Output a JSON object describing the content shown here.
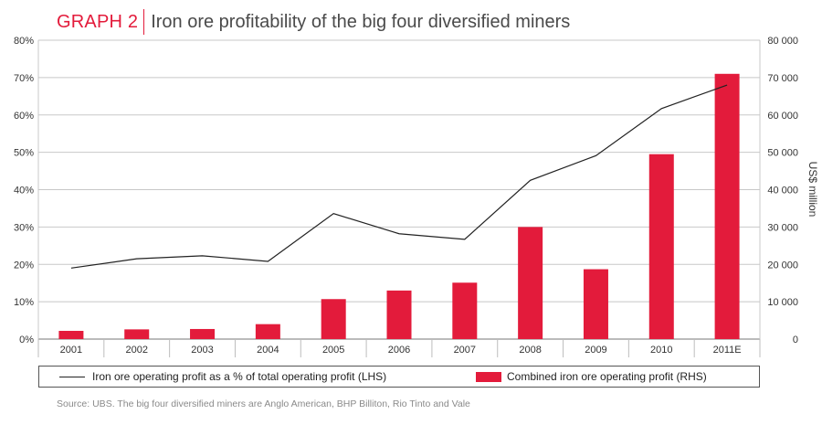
{
  "title": {
    "tag": "GRAPH 2",
    "main": "Iron ore profitability of the big four diversified miners"
  },
  "chart_data": {
    "type": "bar",
    "categories": [
      "2001",
      "2002",
      "2003",
      "2004",
      "2005",
      "2006",
      "2007",
      "2008",
      "2009",
      "2010",
      "2011E"
    ],
    "series": [
      {
        "name": "Iron ore operating profit as a % of total operating profit (LHS)",
        "type": "line",
        "axis": "left",
        "color": "#222222",
        "values": [
          19,
          21.5,
          22.3,
          20.8,
          33.6,
          28.2,
          26.7,
          42.5,
          49.1,
          61.7,
          68
        ]
      },
      {
        "name": "Combined iron ore operating profit (RHS)",
        "type": "bar",
        "axis": "right",
        "color": "#e31b3b",
        "values": [
          2200,
          2600,
          2700,
          4000,
          10700,
          13000,
          15100,
          30000,
          18700,
          49500,
          71000
        ]
      }
    ],
    "left_axis": {
      "range": [
        0,
        80
      ],
      "ticks": [
        "0%",
        "10%",
        "20%",
        "30%",
        "40%",
        "50%",
        "60%",
        "70%",
        "80%"
      ]
    },
    "right_axis": {
      "label": "US$ million",
      "range": [
        0,
        80000
      ],
      "ticks": [
        "0",
        "10 000",
        "20 000",
        "30 000",
        "40 000",
        "50 000",
        "60 000",
        "70 000",
        "80 000"
      ]
    },
    "grid": true,
    "legend_position": "bottom"
  },
  "legend": {
    "line_label": "Iron ore operating profit as a % of total operating profit (LHS)",
    "bar_label": "Combined iron ore operating profit (RHS)"
  },
  "source": "Source: UBS. The big four diversified miners are Anglo American, BHP Billiton, Rio Tinto and Vale"
}
